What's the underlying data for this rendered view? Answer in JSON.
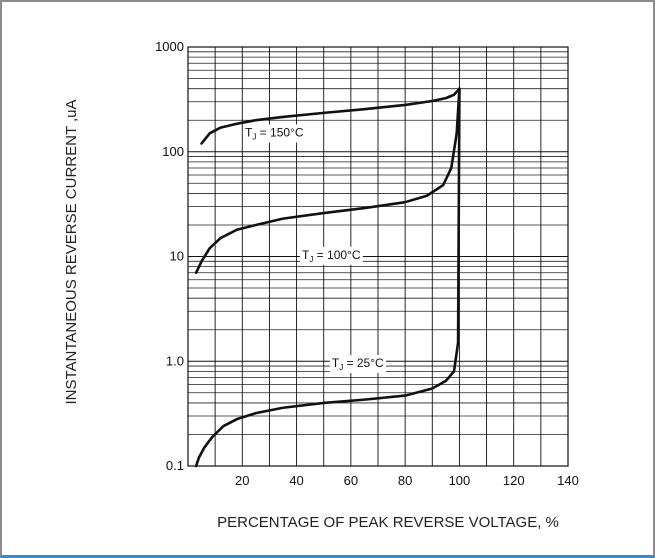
{
  "chart_data": {
    "type": "line",
    "title": "",
    "xlabel": "PERCENTAGE OF PEAK REVERSE VOLTAGE, %",
    "ylabel": "INSTANTANEOUS REVERSE CURRENT ,uA",
    "xlim": [
      0,
      140
    ],
    "ylim": [
      0.1,
      1000
    ],
    "yscale": "log",
    "grid": true,
    "x_ticks": [
      "20",
      "40",
      "60",
      "80",
      "100",
      "120",
      "140"
    ],
    "y_ticks": [
      "0.1",
      "1.0",
      "10",
      "100",
      "1000"
    ],
    "series": [
      {
        "name": "",
        "annotation_tj": "T",
        "annotation_sub": "J",
        "annotation_value": " = 150°C",
        "x": [
          5,
          8,
          12,
          18,
          25,
          35,
          50,
          65,
          80,
          90,
          95,
          98,
          100
        ],
        "y": [
          120,
          150,
          170,
          185,
          200,
          215,
          235,
          255,
          280,
          305,
          325,
          350,
          400
        ]
      },
      {
        "name": "",
        "annotation_tj": "T",
        "annotation_sub": "J",
        "annotation_value": " = 100°C",
        "x": [
          3,
          5,
          8,
          12,
          18,
          25,
          35,
          50,
          65,
          80,
          88,
          94,
          97,
          99,
          100
        ],
        "y": [
          7,
          9,
          12,
          15,
          18,
          20,
          23,
          26,
          29,
          33,
          38,
          48,
          70,
          150,
          400
        ]
      },
      {
        "name": "",
        "annotation_tj": "T",
        "annotation_sub": "J",
        "annotation_value": " = 25°C",
        "x": [
          3,
          4,
          6,
          9,
          13,
          18,
          25,
          35,
          50,
          65,
          80,
          90,
          95,
          98,
          99.5,
          100
        ],
        "y": [
          0.1,
          0.12,
          0.15,
          0.19,
          0.24,
          0.28,
          0.32,
          0.36,
          0.4,
          0.43,
          0.47,
          0.55,
          0.65,
          0.8,
          1.5,
          400
        ]
      }
    ]
  }
}
